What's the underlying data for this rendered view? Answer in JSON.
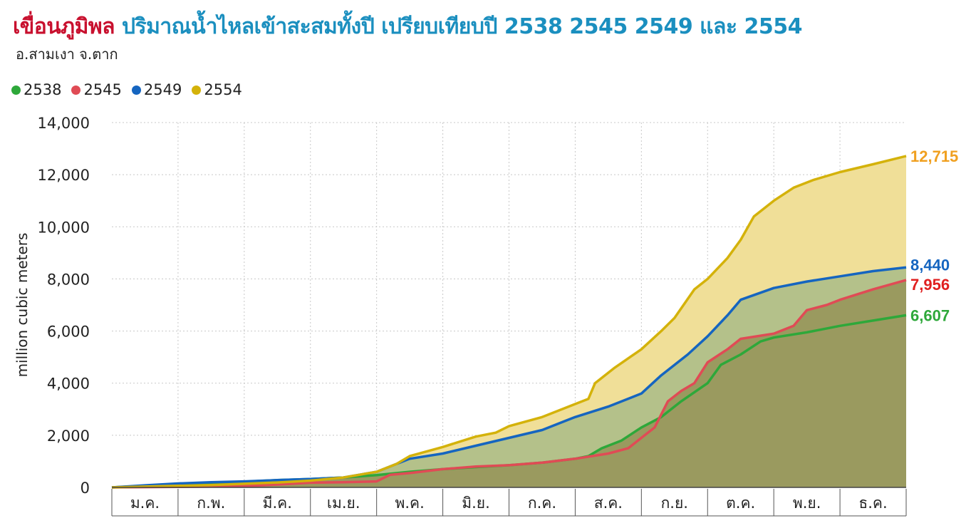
{
  "header": {
    "title_main": "เขื่อนภูมิพล",
    "title_rest": "ปริมาณน้ำไหลเข้าสะสมทั้งปี เปรียบเทียบปี 2538 2545 2549 และ 2554",
    "subtitle": "อ.สามเงา จ.ตาก"
  },
  "chart_data": {
    "type": "area",
    "title": "เขื่อนภูมิพล ปริมาณน้ำไหลเข้าสะสมทั้งปี เปรียบเทียบปี 2538 2545 2549 และ 2554",
    "subtitle": "อ.สามเงา จ.ตาก",
    "xlabel": "",
    "ylabel": "million cubic meters",
    "ylim": [
      0,
      14000
    ],
    "yticks": [
      0,
      2000,
      4000,
      6000,
      8000,
      10000,
      12000,
      14000
    ],
    "ytick_labels": [
      "0",
      "2,000",
      "4,000",
      "6,000",
      "8,000",
      "10,000",
      "12,000",
      "14,000"
    ],
    "months": [
      "ม.ค.",
      "ก.พ.",
      "มี.ค.",
      "เม.ย.",
      "พ.ค.",
      "มิ.ย.",
      "ก.ค.",
      "ส.ค.",
      "ก.ย.",
      "ต.ค.",
      "พ.ย.",
      "ธ.ค."
    ],
    "x_unit": "month (start of month = 0, end of year = 12)",
    "grid": true,
    "legend_position": "top-left",
    "series": [
      {
        "name": "2554",
        "color": "#d4b20a",
        "fill": "#f0df98",
        "end_label": "12,715",
        "end_color": "#f0a020",
        "points": [
          [
            0,
            0
          ],
          [
            0.5,
            30
          ],
          [
            1,
            60
          ],
          [
            1.5,
            90
          ],
          [
            2,
            140
          ],
          [
            2.5,
            190
          ],
          [
            3,
            260
          ],
          [
            3.5,
            380
          ],
          [
            4,
            600
          ],
          [
            4.3,
            900
          ],
          [
            4.5,
            1200
          ],
          [
            5,
            1550
          ],
          [
            5.5,
            1950
          ],
          [
            5.8,
            2100
          ],
          [
            6,
            2350
          ],
          [
            6.5,
            2700
          ],
          [
            7,
            3200
          ],
          [
            7.2,
            3400
          ],
          [
            7.3,
            4000
          ],
          [
            7.6,
            4600
          ],
          [
            8,
            5300
          ],
          [
            8.3,
            6000
          ],
          [
            8.5,
            6500
          ],
          [
            8.8,
            7600
          ],
          [
            9,
            8000
          ],
          [
            9.3,
            8800
          ],
          [
            9.5,
            9500
          ],
          [
            9.7,
            10400
          ],
          [
            10,
            11000
          ],
          [
            10.3,
            11500
          ],
          [
            10.6,
            11800
          ],
          [
            11,
            12100
          ],
          [
            11.5,
            12400
          ],
          [
            12,
            12715
          ]
        ]
      },
      {
        "name": "2549",
        "color": "#1565c0",
        "fill": "#b4c18a",
        "end_label": "8,440",
        "end_color": "#1565c0",
        "points": [
          [
            0,
            0
          ],
          [
            0.5,
            80
          ],
          [
            1,
            150
          ],
          [
            1.5,
            200
          ],
          [
            2,
            230
          ],
          [
            2.5,
            280
          ],
          [
            3,
            320
          ],
          [
            3.5,
            380
          ],
          [
            4,
            600
          ],
          [
            4.5,
            1100
          ],
          [
            5,
            1300
          ],
          [
            5.5,
            1600
          ],
          [
            6,
            1900
          ],
          [
            6.5,
            2200
          ],
          [
            6.9,
            2600
          ],
          [
            7,
            2700
          ],
          [
            7.5,
            3100
          ],
          [
            8,
            3600
          ],
          [
            8.3,
            4300
          ],
          [
            8.5,
            4700
          ],
          [
            8.7,
            5100
          ],
          [
            9,
            5800
          ],
          [
            9.3,
            6600
          ],
          [
            9.5,
            7200
          ],
          [
            10,
            7650
          ],
          [
            10.5,
            7900
          ],
          [
            11,
            8100
          ],
          [
            11.5,
            8300
          ],
          [
            12,
            8440
          ]
        ]
      },
      {
        "name": "2545",
        "color": "#e04b55",
        "fill": "#9a9a5f",
        "end_label": "7,956",
        "end_color": "#e02020",
        "points": [
          [
            0,
            0
          ],
          [
            1,
            20
          ],
          [
            2,
            50
          ],
          [
            2.5,
            110
          ],
          [
            3,
            180
          ],
          [
            3.5,
            200
          ],
          [
            4,
            230
          ],
          [
            4.2,
            480
          ],
          [
            4.5,
            550
          ],
          [
            5,
            700
          ],
          [
            5.5,
            800
          ],
          [
            6,
            850
          ],
          [
            6.5,
            950
          ],
          [
            7,
            1100
          ],
          [
            7.5,
            1300
          ],
          [
            7.8,
            1500
          ],
          [
            8,
            1900
          ],
          [
            8.2,
            2300
          ],
          [
            8.4,
            3300
          ],
          [
            8.6,
            3700
          ],
          [
            8.8,
            4000
          ],
          [
            9,
            4800
          ],
          [
            9.3,
            5300
          ],
          [
            9.5,
            5700
          ],
          [
            10,
            5900
          ],
          [
            10.3,
            6200
          ],
          [
            10.5,
            6800
          ],
          [
            10.8,
            7000
          ],
          [
            11,
            7200
          ],
          [
            11.5,
            7600
          ],
          [
            12,
            7956
          ]
        ]
      },
      {
        "name": "2538",
        "color": "#2ea83a",
        "fill": "#9a9a5f",
        "end_label": "6,607",
        "end_color": "#2ea83a",
        "points": [
          [
            0,
            0
          ],
          [
            0.5,
            60
          ],
          [
            1,
            110
          ],
          [
            1.5,
            170
          ],
          [
            2,
            220
          ],
          [
            2.5,
            280
          ],
          [
            3,
            320
          ],
          [
            3.5,
            380
          ],
          [
            4,
            470
          ],
          [
            4.5,
            600
          ],
          [
            5,
            700
          ],
          [
            5.5,
            780
          ],
          [
            6,
            850
          ],
          [
            6.5,
            950
          ],
          [
            7,
            1100
          ],
          [
            7.2,
            1200
          ],
          [
            7.4,
            1500
          ],
          [
            7.7,
            1800
          ],
          [
            8,
            2300
          ],
          [
            8.3,
            2700
          ],
          [
            8.6,
            3300
          ],
          [
            9,
            4000
          ],
          [
            9.2,
            4700
          ],
          [
            9.5,
            5100
          ],
          [
            9.8,
            5600
          ],
          [
            10,
            5750
          ],
          [
            10.5,
            5950
          ],
          [
            11,
            6200
          ],
          [
            11.5,
            6400
          ],
          [
            12,
            6607
          ]
        ]
      }
    ],
    "legend_order": [
      "2538",
      "2545",
      "2549",
      "2554"
    ]
  },
  "legend": [
    {
      "label": "2538",
      "color": "#2ea83a"
    },
    {
      "label": "2545",
      "color": "#e04b55"
    },
    {
      "label": "2549",
      "color": "#1565c0"
    },
    {
      "label": "2554",
      "color": "#d4b20a"
    }
  ]
}
